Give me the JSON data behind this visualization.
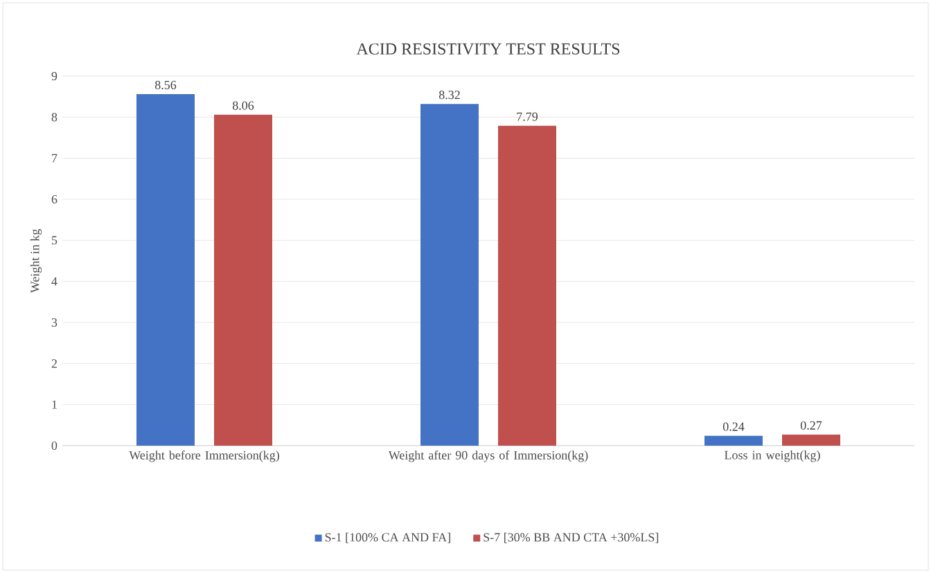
{
  "chart_data": {
    "type": "bar",
    "title": "ACID RESISTIVITY TEST RESULTS",
    "ylabel": "Weight in kg",
    "categories": [
      "Weight before Immersion(kg)",
      "Weight after 90 days of Immersion(kg)",
      "Loss in weight(kg)"
    ],
    "series": [
      {
        "name": "S-1 [100% CA AND FA]",
        "color": "#4472c4",
        "values": [
          8.56,
          8.32,
          0.24
        ]
      },
      {
        "name": "S-7 [30% BB AND CTA +30%LS]",
        "color": "#c0504d",
        "values": [
          8.06,
          7.79,
          0.27
        ]
      }
    ],
    "ylim": [
      0,
      9
    ],
    "yticks": [
      0,
      1,
      2,
      3,
      4,
      5,
      6,
      7,
      8,
      9
    ],
    "grid": "y",
    "legend": "bottom",
    "data_labels": true
  }
}
